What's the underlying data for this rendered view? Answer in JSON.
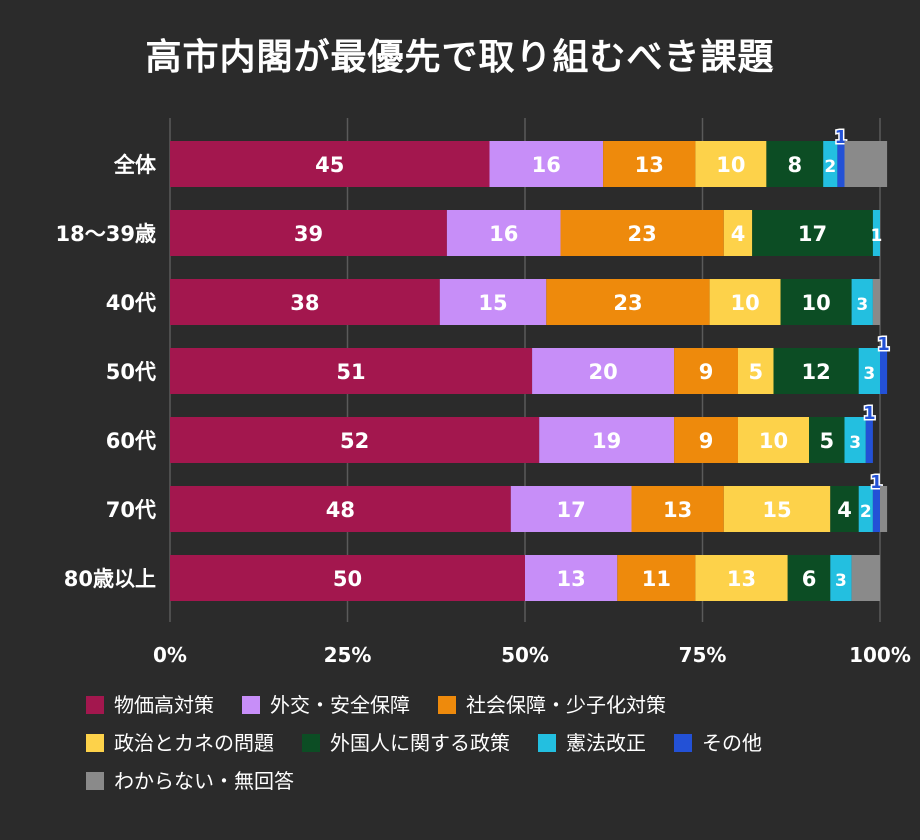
{
  "chart_data": {
    "type": "bar",
    "orientation": "horizontal",
    "stacked": true,
    "title": "高市内閣が最優先で取り組むべき課題",
    "categories": [
      "全体",
      "18〜39歳",
      "40代",
      "50代",
      "60代",
      "70代",
      "80歳以上"
    ],
    "series": [
      {
        "name": "物価高対策",
        "color": "#a3174e",
        "values": [
          45,
          39,
          38,
          51,
          52,
          48,
          50
        ]
      },
      {
        "name": "外交・安全保障",
        "color": "#c78ef8",
        "values": [
          16,
          16,
          15,
          20,
          19,
          17,
          13
        ]
      },
      {
        "name": "社会保障・少子化対策",
        "color": "#ee8a0c",
        "values": [
          13,
          23,
          23,
          9,
          9,
          13,
          11
        ]
      },
      {
        "name": "政治とカネの問題",
        "color": "#fdd24a",
        "values": [
          10,
          4,
          10,
          5,
          10,
          15,
          13
        ]
      },
      {
        "name": "外国人に関する政策",
        "color": "#0c4d24",
        "values": [
          8,
          17,
          10,
          12,
          5,
          4,
          6
        ]
      },
      {
        "name": "憲法改正",
        "color": "#23bfe0",
        "values": [
          2,
          1,
          3,
          3,
          3,
          2,
          3
        ]
      },
      {
        "name": "その他",
        "color": "#2351d6",
        "values": [
          1,
          0,
          0,
          1,
          1,
          1,
          0
        ]
      },
      {
        "name": "わからない・無回答",
        "color": "#8a8a8a",
        "values": [
          6,
          0,
          1,
          0,
          0,
          1,
          4
        ]
      }
    ],
    "xlim": [
      0,
      100
    ],
    "xticks": [
      "0%",
      "25%",
      "50%",
      "75%",
      "100%"
    ],
    "grid": true,
    "legend_position": "bottom"
  }
}
